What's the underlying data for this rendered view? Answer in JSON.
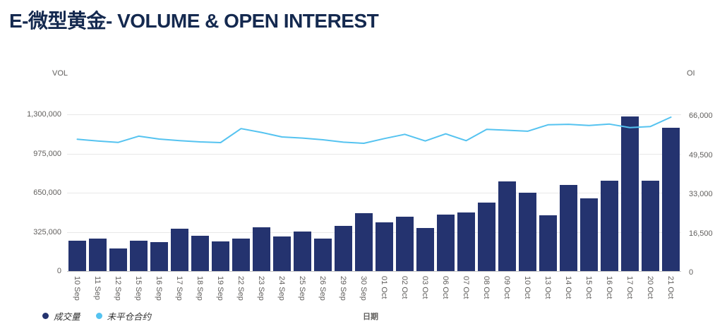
{
  "title": "E-微型黄金- VOLUME & OPEN INTEREST",
  "axes": {
    "left_title": "VOL",
    "right_title": "OI",
    "x_title": "日期",
    "left_ticks": [
      "1,300,000",
      "975,000",
      "650,000",
      "325,000",
      "0"
    ],
    "right_ticks": [
      "66,000",
      "49,500",
      "33,000",
      "16,500",
      "0"
    ]
  },
  "legend": {
    "volume_label": "成交量",
    "oi_label": "未平仓合约"
  },
  "colors": {
    "bar": "#24336F",
    "line": "#55C3F0",
    "title": "#14294F",
    "axis_text": "#605E5C",
    "grid": "#E8E8E8"
  },
  "chart_data": {
    "type": "bar",
    "subtype": "bar+line dual-axis combo",
    "title": "E-微型黄金- VOLUME & OPEN INTEREST",
    "xlabel": "日期",
    "categories": [
      "10 Sep",
      "11 Sep",
      "12 Sep",
      "15 Sep",
      "16 Sep",
      "17 Sep",
      "18 Sep",
      "19 Sep",
      "22 Sep",
      "23 Sep",
      "24 Sep",
      "25 Sep",
      "26 Sep",
      "29 Sep",
      "30 Sep",
      "01 Oct",
      "02 Oct",
      "03 Oct",
      "06 Oct",
      "07 Oct",
      "08 Oct",
      "09 Oct",
      "10 Oct",
      "13 Oct",
      "14 Oct",
      "15 Oct",
      "16 Oct",
      "17 Oct",
      "20 Oct",
      "21 Oct"
    ],
    "series": [
      {
        "name": "成交量",
        "type": "bar",
        "axis": "left",
        "color": "#24336F",
        "values": [
          255000,
          270000,
          190000,
          250000,
          240000,
          350000,
          295000,
          245000,
          270000,
          365000,
          285000,
          330000,
          270000,
          375000,
          480000,
          405000,
          450000,
          355000,
          470000,
          485000,
          570000,
          745000,
          650000,
          465000,
          715000,
          605000,
          750000,
          1280000,
          750000,
          1190000
        ]
      },
      {
        "name": "未平仓合约",
        "type": "line",
        "axis": "right",
        "color": "#55C3F0",
        "values": [
          55500,
          54800,
          54200,
          56800,
          55600,
          54900,
          54400,
          54100,
          60000,
          58400,
          56500,
          56000,
          55300,
          54300,
          53800,
          55800,
          57600,
          54800,
          57800,
          54900,
          59700,
          59300,
          58900,
          61600,
          61800,
          61300,
          61900,
          60400,
          60900,
          64800
        ]
      }
    ],
    "left_axis": {
      "title": "VOL",
      "range": [
        0,
        1300000
      ],
      "ticks": [
        0,
        325000,
        650000,
        975000,
        1300000
      ]
    },
    "right_axis": {
      "title": "OI",
      "range": [
        0,
        66000
      ],
      "ticks": [
        0,
        16500,
        33000,
        49500,
        66000
      ]
    },
    "grid": "horizontal gridlines on",
    "legend_position": "bottom-left"
  }
}
